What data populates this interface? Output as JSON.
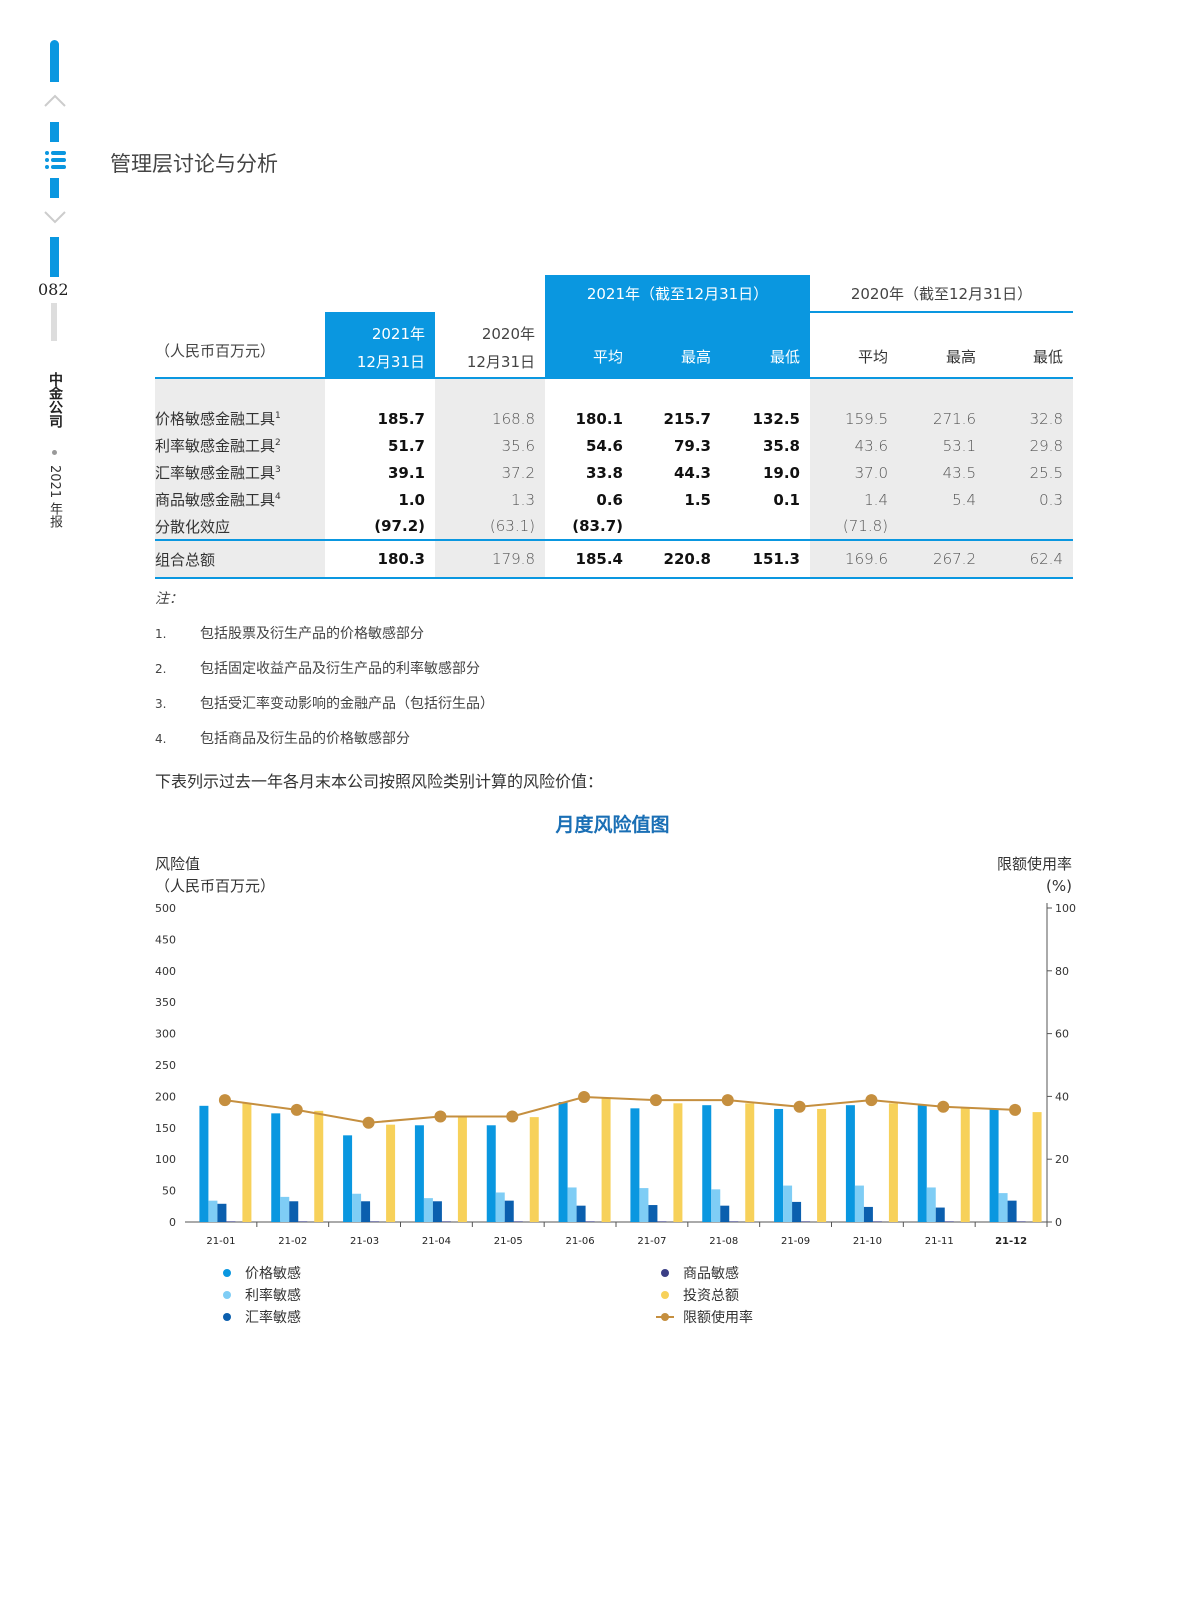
{
  "nav": {
    "page_number": "082",
    "company": "中金公司",
    "report": "2021 年报",
    "icons": [
      "up-chevron-icon",
      "menu-icon",
      "down-chevron-icon"
    ]
  },
  "header": {
    "title": "管理层讨论与分析"
  },
  "table": {
    "group_2021": "2021年（截至12月31日）",
    "group_2020": "2020年（截至12月31日）",
    "unit": "（人民币百万元）",
    "col_2021_end": [
      "2021年",
      "12月31日"
    ],
    "col_2020_end": [
      "2020年",
      "12月31日"
    ],
    "sub": [
      "平均",
      "最高",
      "最低",
      "平均",
      "最高",
      "最低"
    ],
    "rows": [
      {
        "label": "价格敏感金融工具",
        "sup": "1",
        "v": [
          "185.7",
          "168.8",
          "180.1",
          "215.7",
          "132.5",
          "159.5",
          "271.6",
          "32.8"
        ]
      },
      {
        "label": "利率敏感金融工具",
        "sup": "2",
        "v": [
          "51.7",
          "35.6",
          "54.6",
          "79.3",
          "35.8",
          "43.6",
          "53.1",
          "29.8"
        ]
      },
      {
        "label": "汇率敏感金融工具",
        "sup": "3",
        "v": [
          "39.1",
          "37.2",
          "33.8",
          "44.3",
          "19.0",
          "37.0",
          "43.5",
          "25.5"
        ]
      },
      {
        "label": "商品敏感金融工具",
        "sup": "4",
        "v": [
          "1.0",
          "1.3",
          "0.6",
          "1.5",
          "0.1",
          "1.4",
          "5.4",
          "0.3"
        ]
      },
      {
        "label": "分散化效应",
        "sup": "",
        "v": [
          "(97.2)",
          "(63.1)",
          "(83.7)",
          "",
          "",
          "(71.8)",
          "",
          ""
        ]
      }
    ],
    "total": {
      "label": "组合总额",
      "v": [
        "180.3",
        "179.8",
        "185.4",
        "220.8",
        "151.3",
        "169.6",
        "267.2",
        "62.4"
      ]
    }
  },
  "notes": {
    "heading": "注：",
    "items": [
      {
        "n": "1.",
        "t": "包括股票及衍生产品的价格敏感部分"
      },
      {
        "n": "2.",
        "t": "包括固定收益产品及衍生产品的利率敏感部分"
      },
      {
        "n": "3.",
        "t": "包括受汇率变动影响的金融产品（包括衍生品）"
      },
      {
        "n": "4.",
        "t": "包括商品及衍生品的价格敏感部分"
      }
    ],
    "intro": "下表列示过去一年各月末本公司按照风险类别计算的风险价值："
  },
  "chart_data": {
    "type": "bar",
    "title": "月度风险值图",
    "ylabel": [
      "风险值",
      "（人民币百万元）"
    ],
    "y2label": [
      "限额使用率",
      "(%)"
    ],
    "ylim": [
      0,
      500
    ],
    "yticks": [
      0,
      50,
      100,
      150,
      200,
      250,
      300,
      350,
      400,
      450,
      500
    ],
    "y2lim": [
      0,
      100
    ],
    "y2ticks": [
      0,
      20,
      40,
      60,
      80,
      100
    ],
    "categories": [
      "21-01",
      "21-02",
      "21-03",
      "21-04",
      "21-05",
      "21-06",
      "21-07",
      "21-08",
      "21-09",
      "21-10",
      "21-11",
      "21-12"
    ],
    "series": [
      {
        "name": "价格敏感",
        "color": "#0a97e0",
        "values": [
          185,
          173,
          138,
          154,
          154,
          191,
          181,
          186,
          180,
          186,
          186,
          180
        ]
      },
      {
        "name": "利率敏感",
        "color": "#7fcdf5",
        "values": [
          34,
          40,
          45,
          38,
          47,
          55,
          54,
          52,
          58,
          58,
          55,
          46
        ]
      },
      {
        "name": "汇率敏感",
        "color": "#0b5fae",
        "values": [
          29,
          33,
          33,
          33,
          34,
          26,
          27,
          26,
          32,
          24,
          23,
          34
        ]
      },
      {
        "name": "商品敏感",
        "color": "#3b3f86",
        "values": [
          1,
          1,
          1,
          1,
          1,
          1,
          1,
          1,
          1,
          1,
          1,
          1
        ]
      },
      {
        "name": "投资总额",
        "color": "#f7d15a",
        "values": [
          189,
          177,
          155,
          167,
          167,
          197,
          189,
          189,
          180,
          189,
          181,
          175
        ]
      },
      {
        "name": "限额使用率",
        "color": "#c58f3f",
        "type": "line",
        "axis": "right",
        "values": [
          38.8,
          35.7,
          31.6,
          33.6,
          33.6,
          39.8,
          38.8,
          38.8,
          36.7,
          38.8,
          36.7,
          35.7
        ]
      }
    ],
    "legend": "bottom"
  }
}
